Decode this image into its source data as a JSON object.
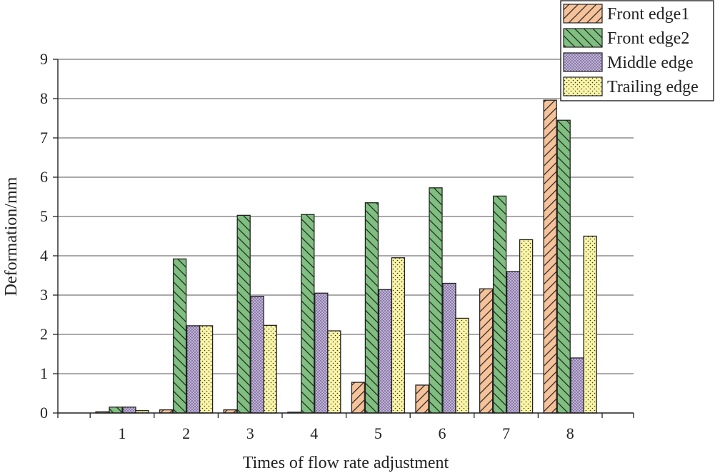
{
  "chart_data": {
    "type": "bar",
    "xlabel": "Times of flow rate adjustment",
    "ylabel": "Deformation/mm",
    "categories": [
      "1",
      "2",
      "3",
      "4",
      "5",
      "6",
      "7",
      "8"
    ],
    "ylim": [
      0,
      9
    ],
    "yticks": [
      "0",
      "1",
      "2",
      "3",
      "4",
      "5",
      "6",
      "7",
      "8",
      "9"
    ],
    "grid": true,
    "legend_position": "top-right",
    "series": [
      {
        "name": "Front edge1",
        "color": "#f6c29a",
        "pattern": "diagonal-hatch",
        "values": [
          0.03,
          0.08,
          0.08,
          0.02,
          0.78,
          0.71,
          3.16,
          7.96
        ]
      },
      {
        "name": "Front edge2",
        "color": "#7fbf7f",
        "pattern": "reverse-diagonal-hatch",
        "values": [
          0.15,
          3.92,
          5.03,
          5.05,
          5.35,
          5.73,
          5.52,
          7.45
        ]
      },
      {
        "name": "Middle edge",
        "color": "#c2b0e2",
        "pattern": "dense-dots",
        "values": [
          0.15,
          2.22,
          2.97,
          3.05,
          3.14,
          3.3,
          3.6,
          1.4
        ]
      },
      {
        "name": "Trailing edge",
        "color": "#fbf6a6",
        "pattern": "sparse-dots",
        "values": [
          0.06,
          2.22,
          2.23,
          2.09,
          3.95,
          2.41,
          4.41,
          4.5
        ]
      }
    ]
  }
}
